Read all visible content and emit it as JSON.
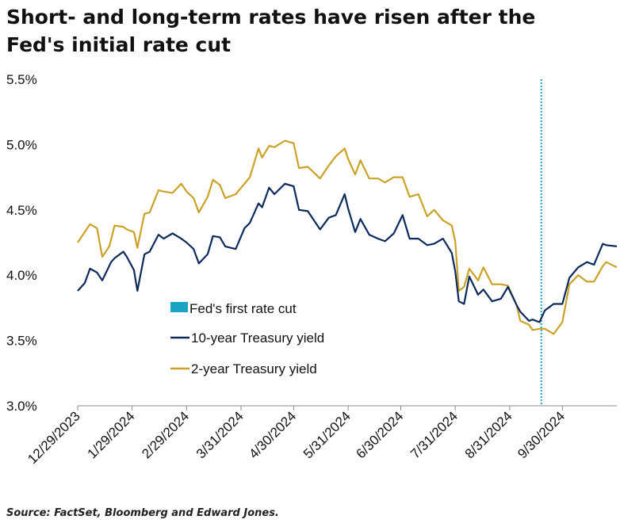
{
  "title_line1": "Short- and long-term rates have risen after the",
  "title_line2": "Fed's initial rate cut",
  "source": "Source: FactSet, Bloomberg and Edward Jones.",
  "chart_data": {
    "type": "line",
    "ylim": [
      3.0,
      5.5
    ],
    "yticks": [
      3.0,
      3.5,
      4.0,
      4.5,
      5.0,
      5.5
    ],
    "ytick_labels": [
      "3.0%",
      "3.5%",
      "4.0%",
      "4.5%",
      "5.0%",
      "5.5%"
    ],
    "xlim": [
      "2023-12-29",
      "2024-10-31"
    ],
    "xticks": [
      "2023-12-29",
      "2024-01-29",
      "2024-02-29",
      "2024-03-31",
      "2024-04-30",
      "2024-05-31",
      "2024-06-30",
      "2024-07-31",
      "2024-08-31",
      "2024-09-30"
    ],
    "xtick_labels": [
      "12/29/2023",
      "1/29/2024",
      "2/29/2024",
      "3/31/2024",
      "4/30/2024",
      "5/31/2024",
      "6/30/2024",
      "7/31/2024",
      "8/31/2024",
      "9/30/2024"
    ],
    "event_line": {
      "x": "2024-09-18",
      "label": "Fed's first rate cut",
      "color": "#1ba3c4"
    },
    "legend_position": "center-left",
    "grid": false,
    "series": [
      {
        "name": "10-year Treasury yield",
        "color": "#0d2a5c",
        "points": [
          [
            "2023-12-29",
            3.88
          ],
          [
            "2024-01-02",
            3.94
          ],
          [
            "2024-01-05",
            4.05
          ],
          [
            "2024-01-09",
            4.02
          ],
          [
            "2024-01-12",
            3.96
          ],
          [
            "2024-01-17",
            4.1
          ],
          [
            "2024-01-19",
            4.13
          ],
          [
            "2024-01-24",
            4.18
          ],
          [
            "2024-01-26",
            4.14
          ],
          [
            "2024-01-30",
            4.04
          ],
          [
            "2024-02-01",
            3.88
          ],
          [
            "2024-02-05",
            4.16
          ],
          [
            "2024-02-08",
            4.18
          ],
          [
            "2024-02-13",
            4.31
          ],
          [
            "2024-02-16",
            4.28
          ],
          [
            "2024-02-21",
            4.32
          ],
          [
            "2024-02-26",
            4.28
          ],
          [
            "2024-02-29",
            4.25
          ],
          [
            "2024-03-04",
            4.2
          ],
          [
            "2024-03-07",
            4.09
          ],
          [
            "2024-03-12",
            4.16
          ],
          [
            "2024-03-15",
            4.3
          ],
          [
            "2024-03-19",
            4.29
          ],
          [
            "2024-03-22",
            4.22
          ],
          [
            "2024-03-28",
            4.2
          ],
          [
            "2024-04-02",
            4.36
          ],
          [
            "2024-04-05",
            4.4
          ],
          [
            "2024-04-10",
            4.55
          ],
          [
            "2024-04-12",
            4.52
          ],
          [
            "2024-04-16",
            4.67
          ],
          [
            "2024-04-19",
            4.62
          ],
          [
            "2024-04-25",
            4.7
          ],
          [
            "2024-04-30",
            4.68
          ],
          [
            "2024-05-03",
            4.5
          ],
          [
            "2024-05-08",
            4.49
          ],
          [
            "2024-05-15",
            4.35
          ],
          [
            "2024-05-20",
            4.44
          ],
          [
            "2024-05-24",
            4.46
          ],
          [
            "2024-05-29",
            4.62
          ],
          [
            "2024-05-31",
            4.51
          ],
          [
            "2024-06-04",
            4.33
          ],
          [
            "2024-06-07",
            4.43
          ],
          [
            "2024-06-12",
            4.31
          ],
          [
            "2024-06-17",
            4.28
          ],
          [
            "2024-06-21",
            4.26
          ],
          [
            "2024-06-26",
            4.32
          ],
          [
            "2024-07-01",
            4.46
          ],
          [
            "2024-07-05",
            4.28
          ],
          [
            "2024-07-10",
            4.28
          ],
          [
            "2024-07-15",
            4.23
          ],
          [
            "2024-07-19",
            4.24
          ],
          [
            "2024-07-24",
            4.28
          ],
          [
            "2024-07-29",
            4.17
          ],
          [
            "2024-07-31",
            4.03
          ],
          [
            "2024-08-02",
            3.8
          ],
          [
            "2024-08-05",
            3.78
          ],
          [
            "2024-08-08",
            3.99
          ],
          [
            "2024-08-13",
            3.85
          ],
          [
            "2024-08-16",
            3.89
          ],
          [
            "2024-08-21",
            3.8
          ],
          [
            "2024-08-26",
            3.82
          ],
          [
            "2024-08-30",
            3.91
          ],
          [
            "2024-09-04",
            3.77
          ],
          [
            "2024-09-06",
            3.72
          ],
          [
            "2024-09-11",
            3.65
          ],
          [
            "2024-09-13",
            3.66
          ],
          [
            "2024-09-17",
            3.64
          ],
          [
            "2024-09-20",
            3.73
          ],
          [
            "2024-09-25",
            3.78
          ],
          [
            "2024-09-30",
            3.78
          ],
          [
            "2024-10-04",
            3.98
          ],
          [
            "2024-10-09",
            4.06
          ],
          [
            "2024-10-14",
            4.1
          ],
          [
            "2024-10-18",
            4.08
          ],
          [
            "2024-10-23",
            4.24
          ],
          [
            "2024-10-25",
            4.23
          ],
          [
            "2024-10-31",
            4.22
          ]
        ]
      },
      {
        "name": "2-year Treasury yield",
        "color": "#c9a227",
        "points": [
          [
            "2023-12-29",
            4.25
          ],
          [
            "2024-01-02",
            4.33
          ],
          [
            "2024-01-05",
            4.39
          ],
          [
            "2024-01-09",
            4.36
          ],
          [
            "2024-01-12",
            4.14
          ],
          [
            "2024-01-16",
            4.22
          ],
          [
            "2024-01-19",
            4.38
          ],
          [
            "2024-01-24",
            4.37
          ],
          [
            "2024-01-26",
            4.35
          ],
          [
            "2024-01-30",
            4.33
          ],
          [
            "2024-02-01",
            4.21
          ],
          [
            "2024-02-05",
            4.47
          ],
          [
            "2024-02-08",
            4.48
          ],
          [
            "2024-02-13",
            4.65
          ],
          [
            "2024-02-16",
            4.64
          ],
          [
            "2024-02-21",
            4.63
          ],
          [
            "2024-02-26",
            4.7
          ],
          [
            "2024-02-29",
            4.64
          ],
          [
            "2024-03-04",
            4.59
          ],
          [
            "2024-03-07",
            4.48
          ],
          [
            "2024-03-12",
            4.6
          ],
          [
            "2024-03-15",
            4.73
          ],
          [
            "2024-03-19",
            4.69
          ],
          [
            "2024-03-22",
            4.59
          ],
          [
            "2024-03-28",
            4.62
          ],
          [
            "2024-04-02",
            4.7
          ],
          [
            "2024-04-05",
            4.75
          ],
          [
            "2024-04-10",
            4.97
          ],
          [
            "2024-04-12",
            4.9
          ],
          [
            "2024-04-16",
            4.99
          ],
          [
            "2024-04-19",
            4.98
          ],
          [
            "2024-04-25",
            5.03
          ],
          [
            "2024-04-30",
            5.01
          ],
          [
            "2024-05-03",
            4.82
          ],
          [
            "2024-05-08",
            4.83
          ],
          [
            "2024-05-15",
            4.74
          ],
          [
            "2024-05-20",
            4.84
          ],
          [
            "2024-05-24",
            4.91
          ],
          [
            "2024-05-29",
            4.97
          ],
          [
            "2024-05-31",
            4.89
          ],
          [
            "2024-06-04",
            4.77
          ],
          [
            "2024-06-07",
            4.88
          ],
          [
            "2024-06-12",
            4.74
          ],
          [
            "2024-06-17",
            4.74
          ],
          [
            "2024-06-21",
            4.71
          ],
          [
            "2024-06-26",
            4.75
          ],
          [
            "2024-07-01",
            4.75
          ],
          [
            "2024-07-05",
            4.6
          ],
          [
            "2024-07-10",
            4.62
          ],
          [
            "2024-07-15",
            4.45
          ],
          [
            "2024-07-19",
            4.5
          ],
          [
            "2024-07-24",
            4.42
          ],
          [
            "2024-07-29",
            4.38
          ],
          [
            "2024-07-31",
            4.26
          ],
          [
            "2024-08-02",
            3.88
          ],
          [
            "2024-08-05",
            3.91
          ],
          [
            "2024-08-08",
            4.05
          ],
          [
            "2024-08-13",
            3.96
          ],
          [
            "2024-08-16",
            4.06
          ],
          [
            "2024-08-21",
            3.93
          ],
          [
            "2024-08-26",
            3.93
          ],
          [
            "2024-08-30",
            3.92
          ],
          [
            "2024-09-04",
            3.77
          ],
          [
            "2024-09-06",
            3.65
          ],
          [
            "2024-09-11",
            3.62
          ],
          [
            "2024-09-13",
            3.58
          ],
          [
            "2024-09-17",
            3.59
          ],
          [
            "2024-09-20",
            3.59
          ],
          [
            "2024-09-25",
            3.55
          ],
          [
            "2024-09-30",
            3.64
          ],
          [
            "2024-10-04",
            3.93
          ],
          [
            "2024-10-09",
            4.0
          ],
          [
            "2024-10-14",
            3.95
          ],
          [
            "2024-10-18",
            3.95
          ],
          [
            "2024-10-23",
            4.07
          ],
          [
            "2024-10-25",
            4.1
          ],
          [
            "2024-10-31",
            4.06
          ]
        ]
      }
    ]
  }
}
